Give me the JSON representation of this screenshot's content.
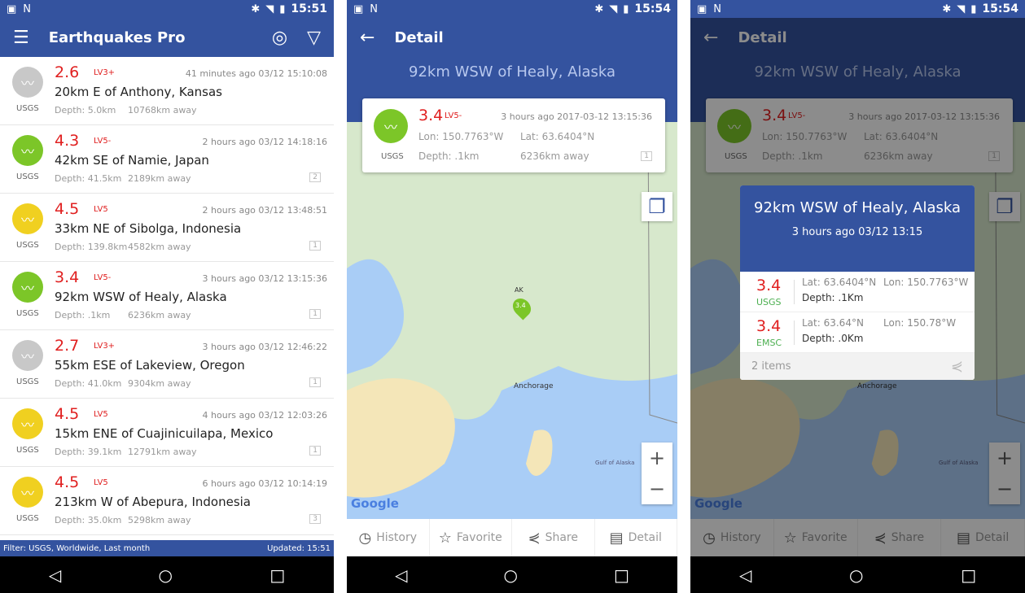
{
  "status": {
    "time1": "15:51",
    "time2": "15:54",
    "time3": "15:54"
  },
  "list_screen": {
    "title": "Earthquakes Pro",
    "rows": [
      {
        "mag": "2.6",
        "level": "LV3+",
        "time": "41 minutes ago 03/12 15:10:08",
        "place": "20km E of Anthony, Kansas",
        "depth": "Depth: 5.0km",
        "away": "10768km away",
        "source": "USGS",
        "color": "#c8c8c8",
        "count": ""
      },
      {
        "mag": "4.3",
        "level": "LV5-",
        "time": "2 hours ago 03/12 14:18:16",
        "place": "42km SE of Namie, Japan",
        "depth": "Depth: 41.5km",
        "away": "2189km away",
        "source": "USGS",
        "color": "#7cc628",
        "count": "2"
      },
      {
        "mag": "4.5",
        "level": "LV5",
        "time": "2 hours ago 03/12 13:48:51",
        "place": "33km NE of Sibolga, Indonesia",
        "depth": "Depth: 139.8km",
        "away": "4582km away",
        "source": "USGS",
        "color": "#f0d020",
        "count": "1"
      },
      {
        "mag": "3.4",
        "level": "LV5-",
        "time": "3 hours ago 03/12 13:15:36",
        "place": "92km WSW of Healy, Alaska",
        "depth": "Depth: .1km",
        "away": "6236km away",
        "source": "USGS",
        "color": "#7cc628",
        "count": "1"
      },
      {
        "mag": "2.7",
        "level": "LV3+",
        "time": "3 hours ago 03/12 12:46:22",
        "place": "55km ESE of Lakeview, Oregon",
        "depth": "Depth: 41.0km",
        "away": "9304km away",
        "source": "USGS",
        "color": "#c8c8c8",
        "count": "1"
      },
      {
        "mag": "4.5",
        "level": "LV5",
        "time": "4 hours ago 03/12 12:03:26",
        "place": "15km ENE of Cuajinicuilapa, Mexico",
        "depth": "Depth: 39.1km",
        "away": "12791km away",
        "source": "USGS",
        "color": "#f0d020",
        "count": "1"
      },
      {
        "mag": "4.5",
        "level": "LV5",
        "time": "6 hours ago 03/12 10:14:19",
        "place": "213km W of Abepura, Indonesia",
        "depth": "Depth: 35.0km",
        "away": "5298km away",
        "source": "USGS",
        "color": "#f0d020",
        "count": "3"
      }
    ],
    "filter": "Filter: USGS, Worldwide, Last month",
    "updated": "Updated: 15:51"
  },
  "detail": {
    "title": "Detail",
    "place": "92km WSW of Healy, Alaska",
    "mag": "3.4",
    "level": "LV5-",
    "time": "3 hours ago 2017-03-12 13:15:36",
    "lon": "Lon:  150.7763°W",
    "lat": "Lat:  63.6404°N",
    "depth": "Depth: .1km",
    "away": "6236km away",
    "source": "USGS",
    "count": "1",
    "map": {
      "marker": "3.4",
      "ak": "AK",
      "anchorage": "Anchorage",
      "gulf": "Gulf of Alaska",
      "google": "Google"
    },
    "tabs": [
      "History",
      "Favorite",
      "Share",
      "Detail"
    ]
  },
  "dialog": {
    "title": "92km WSW of Healy, Alaska",
    "subtitle": "3 hours ago 03/12 13:15",
    "rows": [
      {
        "mag": "3.4",
        "source": "USGS",
        "lat": "Lat: 63.6404°N",
        "lon": "Lon: 150.7763°W",
        "depth": "Depth: .1Km"
      },
      {
        "mag": "3.4",
        "source": "EMSC",
        "lat": "Lat: 63.64°N",
        "lon": "Lon: 150.78°W",
        "depth": "Depth: .0Km"
      }
    ],
    "footer": "2 items"
  },
  "colors": {
    "primary": "#34539f",
    "magnitude": "#e02020",
    "source_green": "#4caf50"
  }
}
